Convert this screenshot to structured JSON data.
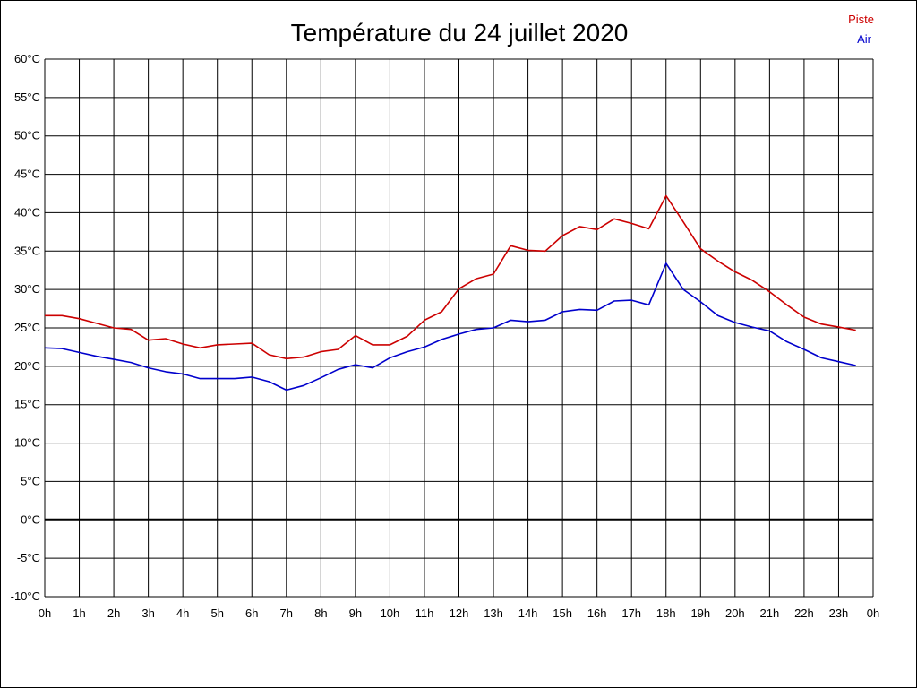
{
  "chart_data": {
    "type": "line",
    "title": "Température du 24 juillet 2020",
    "xlabel": "",
    "ylabel": "",
    "grid": true,
    "legend_position": "top-right",
    "ylim": [
      -10,
      60
    ],
    "xlim": [
      0,
      24
    ],
    "y_ticks": [
      {
        "value": 60,
        "label": "60°C"
      },
      {
        "value": 55,
        "label": "55°C"
      },
      {
        "value": 50,
        "label": "50°C"
      },
      {
        "value": 45,
        "label": "45°C"
      },
      {
        "value": 40,
        "label": "40°C"
      },
      {
        "value": 35,
        "label": "35°C"
      },
      {
        "value": 30,
        "label": "30°C"
      },
      {
        "value": 25,
        "label": "25°C"
      },
      {
        "value": 20,
        "label": "20°C"
      },
      {
        "value": 15,
        "label": "15°C"
      },
      {
        "value": 10,
        "label": "10°C"
      },
      {
        "value": 5,
        "label": "5°C"
      },
      {
        "value": 0,
        "label": "0°C"
      },
      {
        "value": -5,
        "label": "-5°C"
      },
      {
        "value": -10,
        "label": "-10°C"
      }
    ],
    "x_ticks": [
      {
        "value": 0,
        "label": "0h"
      },
      {
        "value": 1,
        "label": "1h"
      },
      {
        "value": 2,
        "label": "2h"
      },
      {
        "value": 3,
        "label": "3h"
      },
      {
        "value": 4,
        "label": "4h"
      },
      {
        "value": 5,
        "label": "5h"
      },
      {
        "value": 6,
        "label": "6h"
      },
      {
        "value": 7,
        "label": "7h"
      },
      {
        "value": 8,
        "label": "8h"
      },
      {
        "value": 9,
        "label": "9h"
      },
      {
        "value": 10,
        "label": "10h"
      },
      {
        "value": 11,
        "label": "11h"
      },
      {
        "value": 12,
        "label": "12h"
      },
      {
        "value": 13,
        "label": "13h"
      },
      {
        "value": 14,
        "label": "14h"
      },
      {
        "value": 15,
        "label": "15h"
      },
      {
        "value": 16,
        "label": "16h"
      },
      {
        "value": 17,
        "label": "17h"
      },
      {
        "value": 18,
        "label": "18h"
      },
      {
        "value": 19,
        "label": "19h"
      },
      {
        "value": 20,
        "label": "20h"
      },
      {
        "value": 21,
        "label": "21h"
      },
      {
        "value": 22,
        "label": "22h"
      },
      {
        "value": 23,
        "label": "23h"
      },
      {
        "value": 24,
        "label": "0h"
      }
    ],
    "x": [
      0,
      0.5,
      1,
      1.5,
      2,
      2.5,
      3,
      3.5,
      4,
      4.5,
      5,
      5.5,
      6,
      6.5,
      7,
      7.5,
      8,
      8.5,
      9,
      9.5,
      10,
      10.5,
      11,
      11.5,
      12,
      12.5,
      13,
      13.5,
      14,
      14.5,
      15,
      15.5,
      16,
      16.5,
      17,
      17.5,
      18,
      18.5,
      19,
      19.5,
      20,
      20.5,
      21,
      21.5,
      22,
      22.5,
      23,
      23.5
    ],
    "series": [
      {
        "name": "Piste",
        "color": "#cc0000",
        "values": [
          26.6,
          26.6,
          26.2,
          25.6,
          25.0,
          24.8,
          23.4,
          23.6,
          22.9,
          22.4,
          22.8,
          22.9,
          23.0,
          21.5,
          21.0,
          21.2,
          21.9,
          22.2,
          24.0,
          22.8,
          22.8,
          23.9,
          26.0,
          27.1,
          30.1,
          31.4,
          32.0,
          35.7,
          35.1,
          35.0,
          37.0,
          38.2,
          37.8,
          39.2,
          38.6,
          37.9,
          42.2,
          38.8,
          35.3,
          33.7,
          32.3,
          31.2,
          29.7,
          28.0,
          26.4,
          25.5,
          25.1,
          24.7
        ]
      },
      {
        "name": "Air",
        "color": "#0000cc",
        "values": [
          22.4,
          22.3,
          21.8,
          21.3,
          20.9,
          20.5,
          19.8,
          19.3,
          19.0,
          18.4,
          18.4,
          18.4,
          18.6,
          18.0,
          16.9,
          17.5,
          18.5,
          19.6,
          20.2,
          19.8,
          21.1,
          21.9,
          22.5,
          23.5,
          24.2,
          24.8,
          25.0,
          26.0,
          25.8,
          26.0,
          27.1,
          27.4,
          27.3,
          28.5,
          28.6,
          28.0,
          33.4,
          30.0,
          28.4,
          26.6,
          25.7,
          25.1,
          24.6,
          23.2,
          22.2,
          21.1,
          20.6,
          20.1
        ]
      }
    ]
  }
}
